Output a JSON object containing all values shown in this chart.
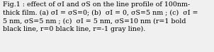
{
  "line1": "Fig.1 : effect of σI and σS on the line profile of 100nm-",
  "line2": "thick film. (a) σI = σS=0; (b)  σI = 0, σS=5 nm ; (c)  σI =",
  "line3": "5 nm, σS=5 nm ; (c)  σI = 5 nm, σS=10 nm (r=1 bold",
  "line4": "black line, r=0 black line, r=-1 gray line).",
  "fontsize": 6.8,
  "background_color": "#f0f0f0",
  "border_color": "#000000",
  "text_color": "#000000",
  "figwidth": 3.02,
  "figheight": 0.74,
  "dpi": 100,
  "linespacing": 1.38
}
